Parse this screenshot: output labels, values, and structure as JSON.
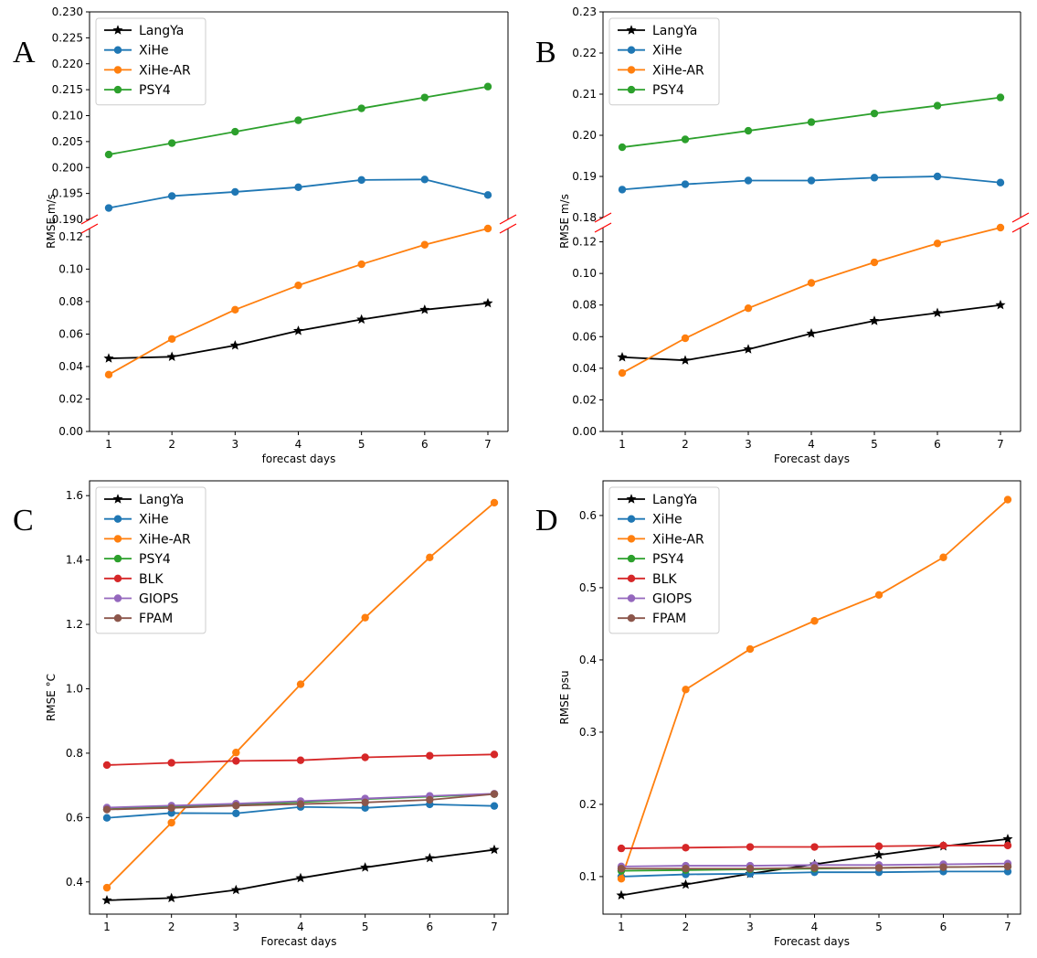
{
  "colors": {
    "LangYa": "#000000",
    "XiHe": "#1f77b4",
    "XiHe-AR": "#ff7f0e",
    "PSY4": "#2ca02c",
    "BLK": "#d62728",
    "GIOPS": "#9467bd",
    "FPAM": "#8c564b",
    "axis": "#000000",
    "break": "#ff0000"
  },
  "chart_data": [
    {
      "id": "A",
      "type": "line",
      "panel_label": "A",
      "xlabel": "forecast days",
      "ylabel": "RMSE m/s",
      "x": [
        1,
        2,
        3,
        4,
        5,
        6,
        7
      ],
      "x_ticks": [
        "1",
        "2",
        "3",
        "4",
        "5",
        "6",
        "7"
      ],
      "broken_axis": true,
      "upper_ylim": [
        0.19,
        0.23
      ],
      "upper_ticks": [
        "0.190",
        "0.195",
        "0.200",
        "0.205",
        "0.210",
        "0.215",
        "0.220",
        "0.225",
        "0.230"
      ],
      "lower_ylim": [
        0.0,
        0.125
      ],
      "lower_ticks": [
        "0.00",
        "0.02",
        "0.04",
        "0.06",
        "0.08",
        "0.10",
        "0.12"
      ],
      "legend_position": "top-left",
      "legend": [
        "LangYa",
        "XiHe",
        "XiHe-AR",
        "PSY4"
      ],
      "series": [
        {
          "name": "LangYa",
          "marker": "star",
          "axis": "lower",
          "values": [
            0.045,
            0.046,
            0.053,
            0.062,
            0.069,
            0.075,
            0.079
          ]
        },
        {
          "name": "XiHe",
          "marker": "circle",
          "axis": "upper",
          "values": [
            0.1922,
            0.1945,
            0.1953,
            0.1962,
            0.1976,
            0.1977,
            0.1947
          ]
        },
        {
          "name": "XiHe-AR",
          "marker": "circle",
          "axis": "lower",
          "values": [
            0.035,
            0.057,
            0.075,
            0.09,
            0.103,
            0.115,
            0.125
          ]
        },
        {
          "name": "PSY4",
          "marker": "circle",
          "axis": "upper",
          "values": [
            0.2025,
            0.2047,
            0.2069,
            0.2091,
            0.2114,
            0.2135,
            0.2156
          ]
        }
      ]
    },
    {
      "id": "B",
      "type": "line",
      "panel_label": "B",
      "xlabel": "Forecast days",
      "ylabel": "RMSE m/s",
      "x": [
        1,
        2,
        3,
        4,
        5,
        6,
        7
      ],
      "x_ticks": [
        "1",
        "2",
        "3",
        "4",
        "5",
        "6",
        "7"
      ],
      "broken_axis": true,
      "upper_ylim": [
        0.18,
        0.23
      ],
      "upper_ticks": [
        "0.18",
        "0.19",
        "0.20",
        "0.21",
        "0.22",
        "0.23"
      ],
      "lower_ylim": [
        0.0,
        0.129
      ],
      "lower_ticks": [
        "0.00",
        "0.02",
        "0.04",
        "0.06",
        "0.08",
        "0.10",
        "0.12"
      ],
      "legend_position": "top-left",
      "legend": [
        "LangYa",
        "XiHe",
        "XiHe-AR",
        "PSY4"
      ],
      "series": [
        {
          "name": "LangYa",
          "marker": "star",
          "axis": "lower",
          "values": [
            0.047,
            0.045,
            0.052,
            0.062,
            0.07,
            0.075,
            0.08
          ]
        },
        {
          "name": "XiHe",
          "marker": "circle",
          "axis": "upper",
          "values": [
            0.1868,
            0.1881,
            0.189,
            0.189,
            0.1897,
            0.19,
            0.1885
          ]
        },
        {
          "name": "XiHe-AR",
          "marker": "circle",
          "axis": "lower",
          "values": [
            0.037,
            0.059,
            0.078,
            0.094,
            0.107,
            0.119,
            0.129
          ]
        },
        {
          "name": "PSY4",
          "marker": "circle",
          "axis": "upper",
          "values": [
            0.1971,
            0.199,
            0.2011,
            0.2032,
            0.2053,
            0.2072,
            0.2092
          ]
        }
      ]
    },
    {
      "id": "C",
      "type": "line",
      "panel_label": "C",
      "xlabel": "Forecast days",
      "ylabel": "RMSE °C",
      "x": [
        1,
        2,
        3,
        4,
        5,
        6,
        7
      ],
      "x_ticks": [
        "1",
        "2",
        "3",
        "4",
        "5",
        "6",
        "7"
      ],
      "broken_axis": false,
      "ylim": [
        0.3,
        1.646
      ],
      "y_ticks": [
        "0.4",
        "0.6",
        "0.8",
        "1.0",
        "1.2",
        "1.4",
        "1.6"
      ],
      "legend_position": "top-left",
      "legend": [
        "LangYa",
        "XiHe",
        "XiHe-AR",
        "PSY4",
        "BLK",
        "GIOPS",
        "FPAM"
      ],
      "series": [
        {
          "name": "LangYa",
          "marker": "star",
          "values": [
            0.343,
            0.35,
            0.375,
            0.412,
            0.445,
            0.474,
            0.5
          ]
        },
        {
          "name": "XiHe",
          "marker": "circle",
          "values": [
            0.599,
            0.614,
            0.613,
            0.633,
            0.63,
            0.641,
            0.636
          ]
        },
        {
          "name": "XiHe-AR",
          "marker": "circle",
          "values": [
            0.382,
            0.584,
            0.802,
            1.014,
            1.221,
            1.408,
            1.578
          ]
        },
        {
          "name": "PSY4",
          "marker": "circle",
          "values": [
            0.626,
            0.634,
            0.641,
            0.648,
            0.657,
            0.665,
            0.673
          ]
        },
        {
          "name": "BLK",
          "marker": "circle",
          "values": [
            0.763,
            0.77,
            0.776,
            0.778,
            0.787,
            0.792,
            0.796
          ]
        },
        {
          "name": "GIOPS",
          "marker": "circle",
          "values": [
            0.631,
            0.637,
            0.643,
            0.651,
            0.659,
            0.667,
            0.674
          ]
        },
        {
          "name": "FPAM",
          "marker": "circle",
          "values": [
            0.625,
            0.63,
            0.637,
            0.642,
            0.647,
            0.655,
            0.673
          ]
        }
      ]
    },
    {
      "id": "D",
      "type": "line",
      "panel_label": "D",
      "xlabel": "Forecast days",
      "ylabel": "RMSE psu",
      "x": [
        1,
        2,
        3,
        4,
        5,
        6,
        7
      ],
      "x_ticks": [
        "1",
        "2",
        "3",
        "4",
        "5",
        "6",
        "7"
      ],
      "broken_axis": false,
      "ylim": [
        0.048,
        0.648
      ],
      "y_ticks": [
        "0.1",
        "0.2",
        "0.3",
        "0.4",
        "0.5",
        "0.6"
      ],
      "legend_position": "top-left",
      "legend": [
        "LangYa",
        "XiHe",
        "XiHe-AR",
        "PSY4",
        "BLK",
        "GIOPS",
        "FPAM"
      ],
      "series": [
        {
          "name": "LangYa",
          "marker": "star",
          "values": [
            0.074,
            0.089,
            0.104,
            0.117,
            0.13,
            0.142,
            0.152
          ]
        },
        {
          "name": "XiHe",
          "marker": "circle",
          "values": [
            0.1,
            0.103,
            0.104,
            0.106,
            0.106,
            0.107,
            0.107
          ]
        },
        {
          "name": "XiHe-AR",
          "marker": "circle",
          "values": [
            0.097,
            0.359,
            0.415,
            0.454,
            0.49,
            0.542,
            0.622
          ]
        },
        {
          "name": "PSY4",
          "marker": "circle",
          "values": [
            0.108,
            0.109,
            0.11,
            0.111,
            0.112,
            0.113,
            0.114
          ]
        },
        {
          "name": "BLK",
          "marker": "circle",
          "values": [
            0.139,
            0.14,
            0.141,
            0.141,
            0.142,
            0.143,
            0.143
          ]
        },
        {
          "name": "GIOPS",
          "marker": "circle",
          "values": [
            0.114,
            0.115,
            0.115,
            0.116,
            0.116,
            0.117,
            0.118
          ]
        },
        {
          "name": "FPAM",
          "marker": "circle",
          "values": [
            0.111,
            0.111,
            0.111,
            0.112,
            0.112,
            0.113,
            0.114
          ]
        }
      ]
    }
  ]
}
